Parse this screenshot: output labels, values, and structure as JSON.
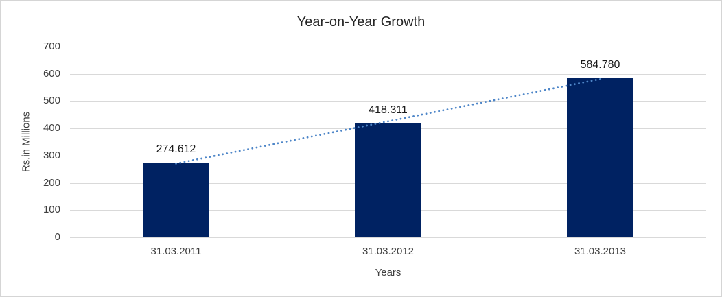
{
  "window": {
    "background_color": "#ffffff",
    "border_color": "#d5d5d5"
  },
  "chart_data": {
    "type": "bar",
    "title": "Year-on-Year Growth",
    "xlabel": "Years",
    "ylabel": "Rs.in Millions",
    "categories": [
      "31.03.2011",
      "31.03.2012",
      "31.03.2013"
    ],
    "values": [
      274.612,
      418.311,
      584.78
    ],
    "data_labels": [
      "274.612",
      "418.311",
      "584.780"
    ],
    "ylim": [
      0,
      700
    ],
    "ytick_step": 100,
    "ytick_labels": [
      "0",
      "100",
      "200",
      "300",
      "400",
      "500",
      "600",
      "700"
    ],
    "grid": "horizontal",
    "legend": "none",
    "bar_color": "#002262",
    "gridline_color": "#d9d9d9",
    "trendline": {
      "type": "linear",
      "style": "dotted",
      "color": "#4e86c8",
      "start_value": 270.9,
      "end_value": 580.9
    }
  }
}
